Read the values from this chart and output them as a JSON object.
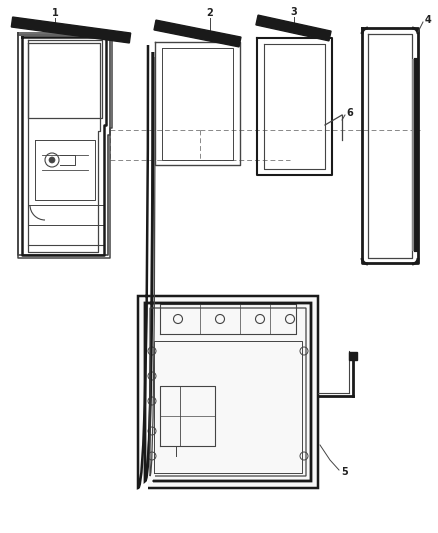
{
  "bg_color": "#ffffff",
  "lc": "#444444",
  "dc": "#1a1a1a",
  "fig_width": 4.38,
  "fig_height": 5.33,
  "dpi": 100
}
